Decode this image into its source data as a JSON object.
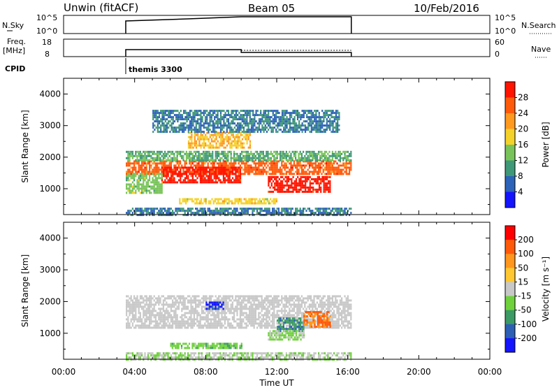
{
  "header": {
    "station": "Unwin (fitACF)",
    "beam": "Beam 05",
    "date": "10/Feb/2016"
  },
  "status_panels": {
    "nsky_label": "N.Sky",
    "nsky_ticks": [
      "10^5",
      "10^0"
    ],
    "nsearch_label": "N.Search",
    "freq_label_1": "Freq.",
    "freq_label_2": "[MHz]",
    "freq_ticks": [
      "18",
      "8"
    ],
    "nave_ticks": [
      "60",
      "0"
    ],
    "nave_label": "Nave",
    "cpid_label": "CPID",
    "cpid_value": "themis 3300"
  },
  "colors": {
    "power_scale": [
      "#1414ff",
      "#2d63b9",
      "#3f9878",
      "#79c45a",
      "#f5d22a",
      "#ff9a1e",
      "#ff5a0a",
      "#ff1400"
    ],
    "velocity_scale": [
      "#1414ff",
      "#2d5fb4",
      "#3c9a64",
      "#6fd23c",
      "#c8c8c8",
      "#ffc832",
      "#ff961e",
      "#ff5a0a",
      "#ff0000"
    ],
    "ground_scatter": "#c8c8c8"
  },
  "chart_data": [
    {
      "type": "heatmap",
      "name": "power",
      "xlabel": "",
      "ylabel": "Slant Range [km]",
      "x_ticks": [
        "00:00",
        "04:00",
        "08:00",
        "12:00",
        "16:00",
        "20:00",
        "00:00"
      ],
      "y_ticks": [
        "1000",
        "2000",
        "3000",
        "4000"
      ],
      "xlim_hours": [
        0,
        24
      ],
      "ylim_km": [
        180,
        4500
      ],
      "colorbar": {
        "label": "Power [dB]",
        "ticks": [
          "4",
          "8",
          "12",
          "16",
          "20",
          "24",
          "28"
        ],
        "range": [
          0,
          32
        ]
      },
      "regions": [
        {
          "t": [
            3.5,
            16.2
          ],
          "r": [
            1500,
            1900
          ],
          "value": 26
        },
        {
          "t": [
            5.5,
            10.0
          ],
          "r": [
            1200,
            1700
          ],
          "value": 30
        },
        {
          "t": [
            11.5,
            15.0
          ],
          "r": [
            900,
            1400
          ],
          "value": 30
        },
        {
          "t": [
            3.5,
            16.2
          ],
          "r": [
            1900,
            2200
          ],
          "value": 12
        },
        {
          "t": [
            7.0,
            10.5
          ],
          "r": [
            2300,
            2800
          ],
          "value": 20
        },
        {
          "t": [
            5.0,
            15.5
          ],
          "r": [
            2800,
            3500
          ],
          "value": 8
        },
        {
          "t": [
            3.5,
            5.5
          ],
          "r": [
            900,
            1500
          ],
          "value": 14
        },
        {
          "t": [
            6.5,
            12.0
          ],
          "r": [
            550,
            700
          ],
          "value": 18
        },
        {
          "t": [
            3.5,
            16.2
          ],
          "r": [
            200,
            400
          ],
          "value": 8
        }
      ]
    },
    {
      "type": "heatmap",
      "name": "velocity",
      "xlabel": "Time UT",
      "ylabel": "Slant Range [km]",
      "x_ticks": [
        "00:00",
        "04:00",
        "08:00",
        "12:00",
        "16:00",
        "20:00",
        "00:00"
      ],
      "y_ticks": [
        "1000",
        "2000",
        "3000",
        "4000"
      ],
      "xlim_hours": [
        0,
        24
      ],
      "ylim_km": [
        180,
        4500
      ],
      "colorbar": {
        "label": "Velocity [m s⁻¹]",
        "ticks": [
          "200",
          "100",
          "50",
          "15",
          "-15",
          "-50",
          "-100",
          "-200"
        ],
        "range": [
          -250,
          250
        ]
      },
      "regions": [
        {
          "t": [
            3.5,
            16.2
          ],
          "r": [
            1200,
            2200
          ],
          "value": 0
        },
        {
          "t": [
            8.0,
            9.0
          ],
          "r": [
            1800,
            2000
          ],
          "value": -200
        },
        {
          "t": [
            12.0,
            13.5
          ],
          "r": [
            1100,
            1500
          ],
          "value": -120
        },
        {
          "t": [
            13.5,
            15.0
          ],
          "r": [
            1200,
            1700
          ],
          "value": 150
        },
        {
          "t": [
            11.5,
            13.5
          ],
          "r": [
            800,
            1100
          ],
          "value": -40
        },
        {
          "t": [
            6.0,
            10.0
          ],
          "r": [
            550,
            700
          ],
          "value": -60
        },
        {
          "t": [
            3.5,
            16.2
          ],
          "r": [
            200,
            400
          ],
          "value": -20
        }
      ]
    }
  ]
}
